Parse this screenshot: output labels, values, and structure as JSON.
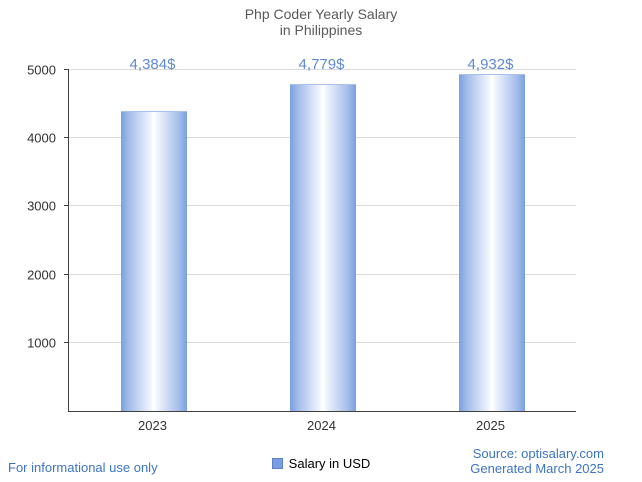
{
  "chart_data": {
    "type": "bar",
    "title": "Php Coder Yearly Salary",
    "subtitle": "in Philippines",
    "categories": [
      "2023",
      "2024",
      "2025"
    ],
    "values": [
      4384,
      4779,
      4932
    ],
    "value_labels": [
      "4,384$",
      "4,779$",
      "4,932$"
    ],
    "series_name": "Salary in USD",
    "xlabel": "",
    "ylabel": "",
    "ylim": [
      0,
      5000
    ],
    "yticks": [
      1000,
      2000,
      3000,
      4000,
      5000
    ],
    "grid": true,
    "legend_position": "bottom-center"
  },
  "legend": {
    "label": "Salary in USD"
  },
  "footer": {
    "disclaimer": "For informational use only",
    "source": "Source: optisalary.com",
    "generated": "Generated March 2025"
  },
  "colors": {
    "title_text": "#595959",
    "tick_text": "#333333",
    "value_label_text": "#5f89d6",
    "footer_text": "#3c74c6",
    "bar_edge": "#79a0e0",
    "bar_center": "#ffffff",
    "legend_swatch": "#7b9de2",
    "gridline": "#dadada",
    "axis": "#404040"
  }
}
